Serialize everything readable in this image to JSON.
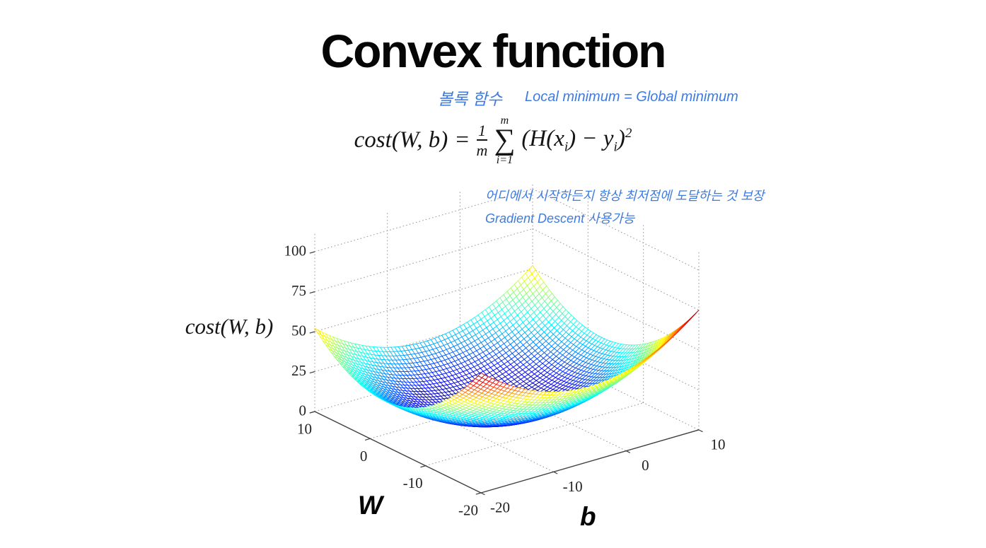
{
  "slide": {
    "title": "Convex function",
    "ink_color": "#3e7be0",
    "notes": {
      "convex_kr": "볼록 함수",
      "minimum": "Local minimum =  Global minimum",
      "guarantee_kr": "어디에서 시작하든지 항상 최저점에 도달하는 것 보장",
      "gradient_descent_kr": "Gradient Descent  사용가능"
    }
  },
  "formula": {
    "lhs": "cost(W, b)",
    "eq": "=",
    "frac": {
      "num": "1",
      "den": "m"
    },
    "sum": {
      "symbol": "∑",
      "upper": "m",
      "lower": "i=1"
    },
    "term": {
      "h": "(H(x",
      "sub1": "i",
      "mid": ") − y",
      "sub2": "i",
      "close": ")",
      "power": "2"
    }
  },
  "chart_data": {
    "type": "surface",
    "plot_style": "3d-wireframe-mesh",
    "colormap": "jet",
    "grid": true,
    "xlabel": "b",
    "ylabel": "W",
    "zlabel": "cost(W, b)",
    "x_range": [
      -20,
      10
    ],
    "y_range": [
      -20,
      10
    ],
    "z_range": [
      0,
      100
    ],
    "x_ticks": [
      -20,
      -10,
      0,
      10
    ],
    "y_ticks": [
      10,
      0,
      -10,
      -20
    ],
    "z_ticks": [
      0,
      25,
      50,
      75,
      100
    ],
    "surface": {
      "description": "convex quadratic bowl cost(W,b) ≈ 0.153·(W+2.5)² + 0.125·(b+5)², minimum ≈ 0 near (W=-2.5, b=-5); corner heights ≈ 52 on the W=10 side (yellow tips) and ≈ 75 on the W=-20 side (red tips); bowl bottom dark blue",
      "coeff_w": 0.153,
      "center_w": -2.5,
      "coeff_b": 0.125,
      "center_b": -5,
      "z_color_max": 76,
      "grid_n": 60
    }
  }
}
